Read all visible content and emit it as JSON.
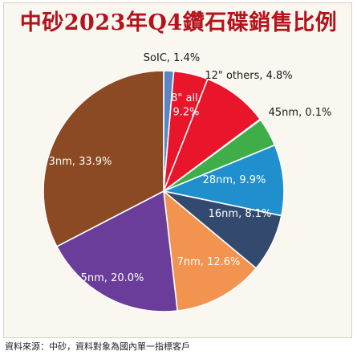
{
  "title": "中砂2023年Q4鑽石碟銷售比例",
  "source": "資料來源：中砂，資料對象為國內單一指標客戶",
  "chart_data": {
    "type": "pie",
    "title": "中砂2023年Q4鑽石碟銷售比例",
    "slices": [
      {
        "label": "SoIC, 1.4%",
        "value": 1.4,
        "color": "#5b86c4"
      },
      {
        "label": "12\" others, 4.8%",
        "value": 4.8,
        "color": "#e8152b"
      },
      {
        "label": "8\" all, 9.2%",
        "value": 9.2,
        "color": "#e8152b"
      },
      {
        "label": "45nm, 0.1%",
        "value": 0.1,
        "color": "#3fae49"
      },
      {
        "label": "",
        "value": 4.0,
        "color": "#3fae49"
      },
      {
        "label": "28nm, 9.9%",
        "value": 9.9,
        "color": "#1f8fce"
      },
      {
        "label": "16nm, 8.1%",
        "value": 8.1,
        "color": "#334a6e"
      },
      {
        "label": "7nm, 12.6%",
        "value": 12.6,
        "color": "#f2944f"
      },
      {
        "label": "5nm, 20.0%",
        "value": 20.0,
        "color": "#6a3d9a"
      },
      {
        "label": "3nm, 33.9%",
        "value": 33.9,
        "color": "#8b4a24"
      }
    ]
  }
}
